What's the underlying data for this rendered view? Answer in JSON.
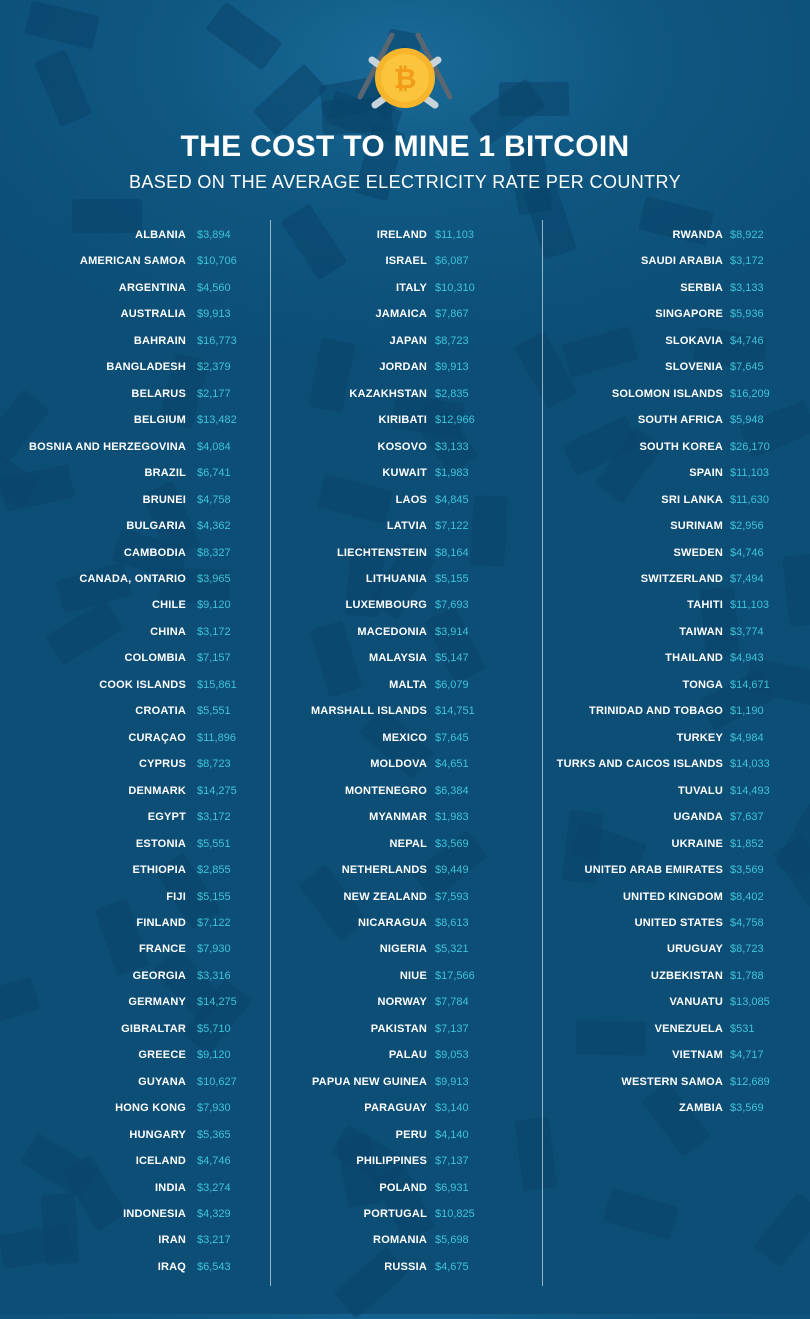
{
  "header": {
    "title": "THE COST TO MINE 1 BITCOIN",
    "subtitle": "BASED ON THE AVERAGE ELECTRICITY RATE PER COUNTRY",
    "logo_icon": "bitcoin-pickaxe-icon"
  },
  "colors": {
    "background": "#0c4e76",
    "name_text": "#ffffff",
    "value_text": "#3ec3d8",
    "coin": "#f7b52b"
  },
  "columns": [
    [
      [
        "ALBANIA",
        "$3,894"
      ],
      [
        "AMERICAN SAMOA",
        "$10,706"
      ],
      [
        "ARGENTINA",
        "$4,560"
      ],
      [
        "AUSTRALIA",
        "$9,913"
      ],
      [
        "BAHRAIN",
        "$16,773"
      ],
      [
        "BANGLADESH",
        "$2,379"
      ],
      [
        "BELARUS",
        "$2,177"
      ],
      [
        "BELGIUM",
        "$13,482"
      ],
      [
        "BOSNIA AND HERZEGOVINA",
        "$4,084"
      ],
      [
        "BRAZIL",
        "$6,741"
      ],
      [
        "BRUNEI",
        "$4,758"
      ],
      [
        "BULGARIA",
        "$4,362"
      ],
      [
        "CAMBODIA",
        "$8,327"
      ],
      [
        "CANADA, ONTARIO",
        "$3,965"
      ],
      [
        "CHILE",
        "$9,120"
      ],
      [
        "CHINA",
        "$3,172"
      ],
      [
        "COLOMBIA",
        "$7,157"
      ],
      [
        "COOK ISLANDS",
        "$15,861"
      ],
      [
        "CROATIA",
        "$5,551"
      ],
      [
        "CURAÇAO",
        "$11,896"
      ],
      [
        "CYPRUS",
        "$8,723"
      ],
      [
        "DENMARK",
        "$14,275"
      ],
      [
        "EGYPT",
        "$3,172"
      ],
      [
        "ESTONIA",
        "$5,551"
      ],
      [
        "ETHIOPIA",
        "$2,855"
      ],
      [
        "FIJI",
        "$5,155"
      ],
      [
        "FINLAND",
        "$7,122"
      ],
      [
        "FRANCE",
        "$7,930"
      ],
      [
        "GEORGIA",
        "$3,316"
      ],
      [
        "GERMANY",
        "$14,275"
      ],
      [
        "GIBRALTAR",
        "$5,710"
      ],
      [
        "GREECE",
        "$9,120"
      ],
      [
        "GUYANA",
        "$10,627"
      ],
      [
        "HONG KONG",
        "$7,930"
      ],
      [
        "HUNGARY",
        "$5,365"
      ],
      [
        "ICELAND",
        "$4,746"
      ],
      [
        "INDIA",
        "$3,274"
      ],
      [
        "INDONESIA",
        "$4,329"
      ],
      [
        "IRAN",
        "$3,217"
      ],
      [
        "IRAQ",
        "$6,543"
      ]
    ],
    [
      [
        "IRELAND",
        "$11,103"
      ],
      [
        "ISRAEL",
        "$6,087"
      ],
      [
        "ITALY",
        "$10,310"
      ],
      [
        "JAMAICA",
        "$7,867"
      ],
      [
        "JAPAN",
        "$8,723"
      ],
      [
        "JORDAN",
        "$9,913"
      ],
      [
        "KAZAKHSTAN",
        "$2,835"
      ],
      [
        "KIRIBATI",
        "$12,966"
      ],
      [
        "KOSOVO",
        "$3,133"
      ],
      [
        "KUWAIT",
        "$1,983"
      ],
      [
        "LAOS",
        "$4,845"
      ],
      [
        "LATVIA",
        "$7,122"
      ],
      [
        "LIECHTENSTEIN",
        "$8,164"
      ],
      [
        "LITHUANIA",
        "$5,155"
      ],
      [
        "LUXEMBOURG",
        "$7,693"
      ],
      [
        "MACEDONIA",
        "$3,914"
      ],
      [
        "MALAYSIA",
        "$5,147"
      ],
      [
        "MALTA",
        "$6,079"
      ],
      [
        "MARSHALL ISLANDS",
        "$14,751"
      ],
      [
        "MEXICO",
        "$7,645"
      ],
      [
        "MOLDOVA",
        "$4,651"
      ],
      [
        "MONTENEGRO",
        "$6,384"
      ],
      [
        "MYANMAR",
        "$1,983"
      ],
      [
        "NEPAL",
        "$3,569"
      ],
      [
        "NETHERLANDS",
        "$9,449"
      ],
      [
        "NEW ZEALAND",
        "$7,593"
      ],
      [
        "NICARAGUA",
        "$8,613"
      ],
      [
        "NIGERIA",
        "$5,321"
      ],
      [
        "NIUE",
        "$17,566"
      ],
      [
        "NORWAY",
        "$7,784"
      ],
      [
        "PAKISTAN",
        "$7,137"
      ],
      [
        "PALAU",
        "$9,053"
      ],
      [
        "PAPUA NEW GUINEA",
        "$9,913"
      ],
      [
        "PARAGUAY",
        "$3,140"
      ],
      [
        "PERU",
        "$4,140"
      ],
      [
        "PHILIPPINES",
        "$7,137"
      ],
      [
        "POLAND",
        "$6,931"
      ],
      [
        "PORTUGAL",
        "$10,825"
      ],
      [
        "ROMANIA",
        "$5,698"
      ],
      [
        "RUSSIA",
        "$4,675"
      ]
    ],
    [
      [
        "RWANDA",
        "$8,922"
      ],
      [
        "SAUDI ARABIA",
        "$3,172"
      ],
      [
        "SERBIA",
        "$3,133"
      ],
      [
        "SINGAPORE",
        "$5,936"
      ],
      [
        "SLOKAVIA",
        "$4,746"
      ],
      [
        "SLOVENIA",
        "$7,645"
      ],
      [
        "SOLOMON ISLANDS",
        "$16,209"
      ],
      [
        "SOUTH AFRICA",
        "$5,948"
      ],
      [
        "SOUTH KOREA",
        "$26,170"
      ],
      [
        "SPAIN",
        "$11,103"
      ],
      [
        "SRI LANKA",
        "$11,630"
      ],
      [
        "SURINAM",
        "$2,956"
      ],
      [
        "SWEDEN",
        "$4,746"
      ],
      [
        "SWITZERLAND",
        "$7,494"
      ],
      [
        "TAHITI",
        "$11,103"
      ],
      [
        "TAIWAN",
        "$3,774"
      ],
      [
        "THAILAND",
        "$4,943"
      ],
      [
        "TONGA",
        "$14,671"
      ],
      [
        "TRINIDAD AND TOBAGO",
        "$1,190"
      ],
      [
        "TURKEY",
        "$4,984"
      ],
      [
        "TURKS AND CAICOS ISLANDS",
        "$14,033"
      ],
      [
        "TUVALU",
        "$14,493"
      ],
      [
        "UGANDA",
        "$7,637"
      ],
      [
        "UKRAINE",
        "$1,852"
      ],
      [
        "UNITED ARAB EMIRATES",
        "$3,569"
      ],
      [
        "UNITED KINGDOM",
        "$8,402"
      ],
      [
        "UNITED STATES",
        "$4,758"
      ],
      [
        "URUGUAY",
        "$8,723"
      ],
      [
        "UZBEKISTAN",
        "$1,788"
      ],
      [
        "VANUATU",
        "$13,085"
      ],
      [
        "VENEZUELA",
        "$531"
      ],
      [
        "VIETNAM",
        "$4,717"
      ],
      [
        "WESTERN SAMOA",
        "$12,689"
      ],
      [
        "ZAMBIA",
        "$3,569"
      ]
    ]
  ]
}
